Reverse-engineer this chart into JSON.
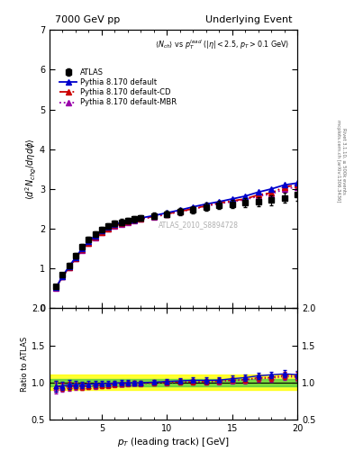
{
  "title_left": "7000 GeV pp",
  "title_right": "Underlying Event",
  "ylabel_main": "$\\langle d^2 N_{chg}/d\\eta d\\phi \\rangle$",
  "xlabel": "$p_T$ (leading track) [GeV]",
  "ylabel_ratio": "Ratio to ATLAS",
  "watermark": "ATLAS_2010_S8894728",
  "right_label": "mcplots.cern.ch [arXiv:1306.3436]",
  "right_label2": "Rivet 3.1.10, ≥ 500k events",
  "ylim_main": [
    0,
    7
  ],
  "ylim_ratio": [
    0.5,
    2.0
  ],
  "xlim": [
    1,
    20
  ],
  "atlas_x": [
    1.5,
    2.0,
    2.5,
    3.0,
    3.5,
    4.0,
    4.5,
    5.0,
    5.5,
    6.0,
    6.5,
    7.0,
    7.5,
    8.0,
    9.0,
    10.0,
    11.0,
    12.0,
    13.0,
    14.0,
    15.0,
    16.0,
    17.0,
    18.0,
    19.0,
    20.0
  ],
  "atlas_y": [
    0.55,
    0.85,
    1.08,
    1.32,
    1.55,
    1.72,
    1.87,
    1.98,
    2.07,
    2.13,
    2.17,
    2.21,
    2.24,
    2.28,
    2.32,
    2.37,
    2.42,
    2.48,
    2.55,
    2.6,
    2.62,
    2.65,
    2.68,
    2.72,
    2.78,
    2.85
  ],
  "atlas_yerr": [
    0.04,
    0.05,
    0.06,
    0.06,
    0.07,
    0.07,
    0.07,
    0.07,
    0.07,
    0.07,
    0.07,
    0.07,
    0.07,
    0.07,
    0.08,
    0.08,
    0.09,
    0.09,
    0.1,
    0.1,
    0.1,
    0.11,
    0.11,
    0.12,
    0.13,
    0.14
  ],
  "pythia_default_x": [
    1.5,
    2.0,
    2.5,
    3.0,
    3.5,
    4.0,
    4.5,
    5.0,
    5.5,
    6.0,
    6.5,
    7.0,
    7.5,
    8.0,
    9.0,
    10.0,
    11.0,
    12.0,
    13.0,
    14.0,
    15.0,
    16.0,
    17.0,
    18.0,
    19.0,
    20.0
  ],
  "pythia_default_y": [
    0.52,
    0.81,
    1.05,
    1.28,
    1.5,
    1.68,
    1.83,
    1.95,
    2.04,
    2.11,
    2.16,
    2.2,
    2.23,
    2.27,
    2.33,
    2.4,
    2.47,
    2.55,
    2.62,
    2.68,
    2.75,
    2.82,
    2.92,
    3.0,
    3.1,
    3.15
  ],
  "pythia_cd_x": [
    1.5,
    2.0,
    2.5,
    3.0,
    3.5,
    4.0,
    4.5,
    5.0,
    5.5,
    6.0,
    6.5,
    7.0,
    7.5,
    8.0,
    9.0,
    10.0,
    11.0,
    12.0,
    13.0,
    14.0,
    15.0,
    16.0,
    17.0,
    18.0,
    19.0,
    20.0
  ],
  "pythia_cd_y": [
    0.52,
    0.8,
    1.03,
    1.26,
    1.47,
    1.64,
    1.79,
    1.91,
    2.0,
    2.08,
    2.13,
    2.18,
    2.22,
    2.25,
    2.31,
    2.37,
    2.44,
    2.5,
    2.58,
    2.65,
    2.7,
    2.75,
    2.85,
    2.9,
    3.05,
    3.1
  ],
  "pythia_mbr_x": [
    1.5,
    2.0,
    2.5,
    3.0,
    3.5,
    4.0,
    4.5,
    5.0,
    5.5,
    6.0,
    6.5,
    7.0,
    7.5,
    8.0,
    9.0,
    10.0,
    11.0,
    12.0,
    13.0,
    14.0,
    15.0,
    16.0,
    17.0,
    18.0,
    19.0,
    20.0
  ],
  "pythia_mbr_y": [
    0.51,
    0.79,
    1.02,
    1.25,
    1.46,
    1.63,
    1.78,
    1.9,
    1.99,
    2.07,
    2.12,
    2.17,
    2.21,
    2.24,
    2.3,
    2.36,
    2.43,
    2.49,
    2.57,
    2.63,
    2.68,
    2.73,
    2.82,
    2.87,
    3.0,
    3.05
  ],
  "color_atlas": "#000000",
  "color_default": "#0000cc",
  "color_cd": "#cc0000",
  "color_mbr": "#9900aa",
  "band_yellow_hw": 0.1,
  "band_green_hw": 0.05
}
